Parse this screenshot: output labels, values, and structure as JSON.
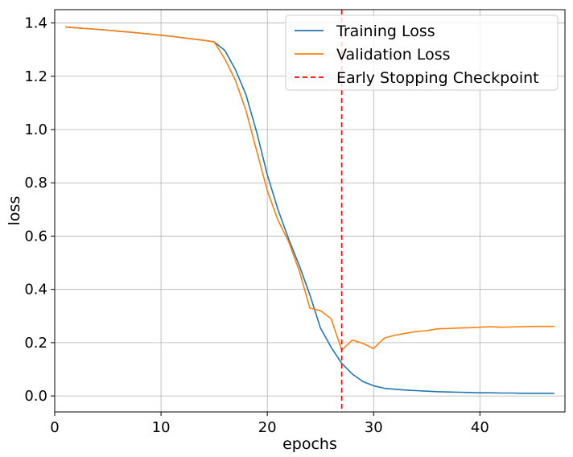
{
  "chart_data": {
    "type": "line",
    "xlabel": "epochs",
    "ylabel": "loss",
    "xlim": [
      0,
      48
    ],
    "ylim": [
      -0.06,
      1.45
    ],
    "xticks": [
      0,
      10,
      20,
      30,
      40
    ],
    "yticks": [
      0.0,
      0.2,
      0.4,
      0.6,
      0.8,
      1.0,
      1.2,
      1.4
    ],
    "ytick_labels": [
      "0.0",
      "0.2",
      "0.4",
      "0.6",
      "0.8",
      "1.0",
      "1.2",
      "1.4"
    ],
    "grid": true,
    "legend_position": "top-right",
    "series": [
      {
        "name": "Training Loss",
        "color": "#1f77b4",
        "style": "solid",
        "x": [
          1,
          2,
          3,
          4,
          5,
          6,
          7,
          8,
          9,
          10,
          11,
          12,
          13,
          14,
          15,
          16,
          17,
          18,
          19,
          20,
          21,
          22,
          23,
          24,
          25,
          26,
          27,
          28,
          29,
          30,
          31,
          32,
          33,
          34,
          35,
          36,
          37,
          38,
          39,
          40,
          41,
          42,
          43,
          44,
          45,
          46,
          47
        ],
        "values": [
          1.385,
          1.382,
          1.379,
          1.376,
          1.373,
          1.369,
          1.366,
          1.362,
          1.358,
          1.354,
          1.35,
          1.345,
          1.34,
          1.335,
          1.329,
          1.297,
          1.225,
          1.13,
          0.99,
          0.83,
          0.7,
          0.59,
          0.49,
          0.38,
          0.255,
          0.183,
          0.122,
          0.082,
          0.054,
          0.038,
          0.029,
          0.025,
          0.022,
          0.02,
          0.018,
          0.016,
          0.015,
          0.014,
          0.013,
          0.012,
          0.012,
          0.011,
          0.011,
          0.01,
          0.01,
          0.01,
          0.01
        ]
      },
      {
        "name": "Validation Loss",
        "color": "#ff7f0e",
        "style": "solid",
        "x": [
          1,
          2,
          3,
          4,
          5,
          6,
          7,
          8,
          9,
          10,
          11,
          12,
          13,
          14,
          15,
          16,
          17,
          18,
          19,
          20,
          21,
          22,
          23,
          24,
          25,
          26,
          27,
          28,
          29,
          30,
          31,
          32,
          33,
          34,
          35,
          36,
          37,
          38,
          39,
          40,
          41,
          42,
          43,
          44,
          45,
          46,
          47
        ],
        "values": [
          1.385,
          1.382,
          1.379,
          1.376,
          1.373,
          1.369,
          1.366,
          1.362,
          1.358,
          1.354,
          1.35,
          1.345,
          1.34,
          1.335,
          1.329,
          1.265,
          1.185,
          1.07,
          0.92,
          0.77,
          0.66,
          0.58,
          0.47,
          0.33,
          0.32,
          0.29,
          0.172,
          0.21,
          0.197,
          0.178,
          0.217,
          0.228,
          0.235,
          0.242,
          0.245,
          0.252,
          0.253,
          0.255,
          0.256,
          0.258,
          0.26,
          0.258,
          0.259,
          0.26,
          0.261,
          0.261,
          0.261
        ]
      }
    ],
    "annotations": [
      {
        "type": "vline",
        "x": 27,
        "name": "Early Stopping Checkpoint",
        "color": "#ff0000",
        "style": "dashed"
      }
    ]
  }
}
